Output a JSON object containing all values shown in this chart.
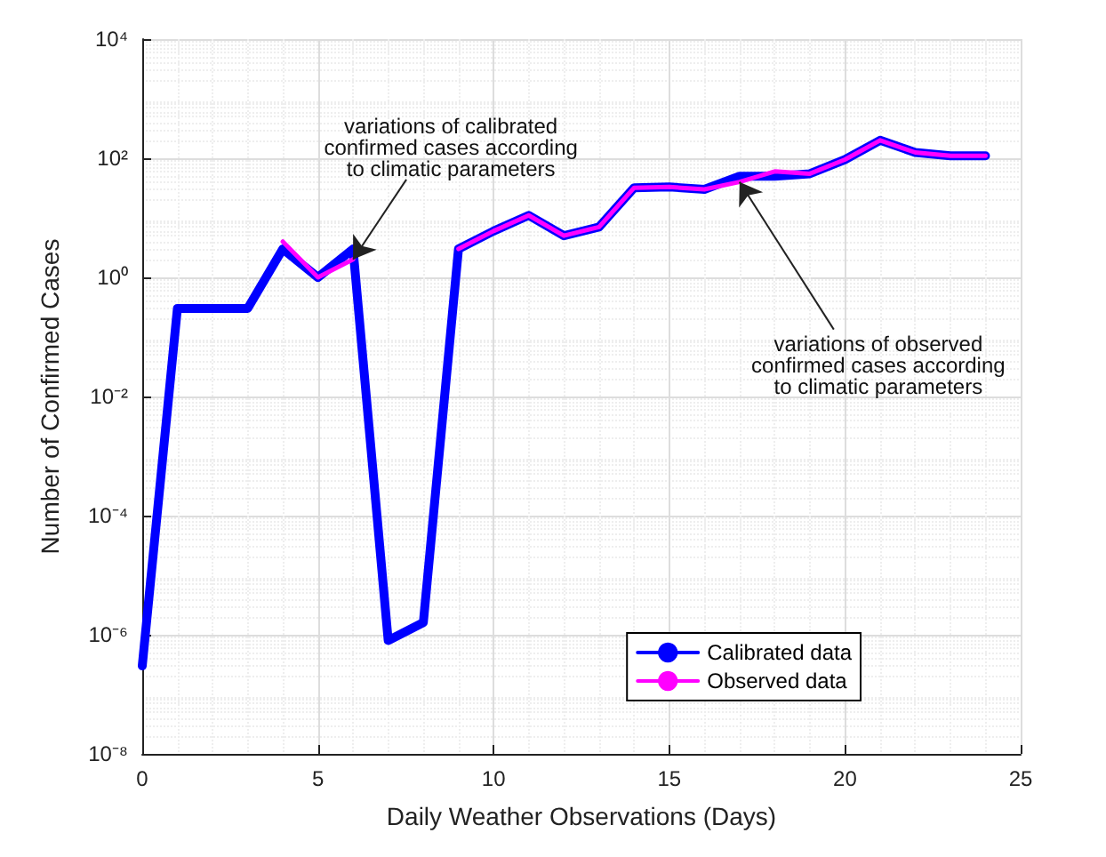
{
  "chart_data": {
    "type": "line",
    "xlabel": "Daily Weather Observations (Days)",
    "ylabel": "Number of Confirmed Cases",
    "x": [
      0,
      1,
      2,
      3,
      4,
      5,
      6,
      7,
      8,
      9,
      10,
      11,
      12,
      13,
      14,
      15,
      16,
      17,
      18,
      19,
      20,
      21,
      22,
      23,
      24
    ],
    "series": [
      {
        "name": "Calibrated data",
        "color": "#0000ff",
        "values": [
          3e-07,
          0.3,
          0.3,
          0.3,
          3,
          1,
          3,
          8e-07,
          1.6e-06,
          3,
          6,
          11,
          5,
          7,
          32,
          33,
          30,
          50,
          50,
          55,
          95,
          200,
          125,
          110,
          110
        ]
      },
      {
        "name": "Observed data",
        "color": "#ff00ff",
        "values": [
          null,
          null,
          null,
          null,
          4,
          1,
          2,
          null,
          null,
          3,
          6,
          11,
          5,
          7,
          32,
          33,
          30,
          40,
          60,
          55,
          95,
          200,
          125,
          110,
          110
        ]
      }
    ],
    "log": "y",
    "xlim": [
      0,
      25
    ],
    "xticks": [
      0,
      5,
      10,
      15,
      20,
      25
    ],
    "ylim": [
      1e-08,
      10000
    ],
    "yticks": [
      {
        "value": 1e-08,
        "label": "10⁻⁸"
      },
      {
        "value": 1e-06,
        "label": "10⁻⁶"
      },
      {
        "value": 0.0001,
        "label": "10⁻⁴"
      },
      {
        "value": 0.01,
        "label": "10⁻²"
      },
      {
        "value": 1,
        "label": "10⁰"
      },
      {
        "value": 100,
        "label": "10²"
      },
      {
        "value": 10000,
        "label": "10⁴"
      }
    ],
    "grid": true,
    "legend": "bottom right",
    "marker": "none",
    "line_style": "solid",
    "annotations": [
      {
        "text": "variations of calibrated\nconfirmed cases according\nto climatic parameters",
        "x": 6,
        "y": 2
      },
      {
        "text": "variations of observed\nconfirmed cases according\nto climatic parameters",
        "x": 17,
        "y": 40
      }
    ]
  }
}
